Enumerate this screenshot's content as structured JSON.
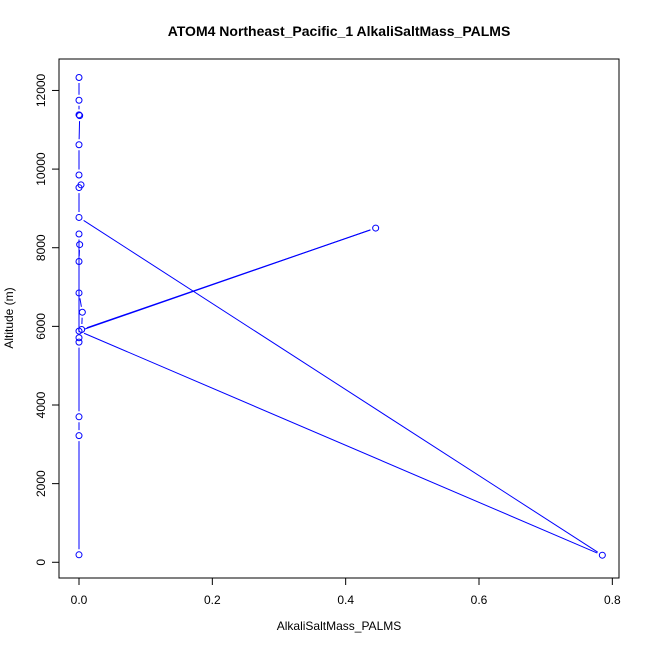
{
  "chart_data": {
    "type": "scatter",
    "title": "ATOM4 Northeast_Pacific_1 AlkaliSaltMass_PALMS",
    "xlabel": "AlkaliSaltMass_PALMS",
    "ylabel": "Altitude (m)",
    "xlim": [
      -0.03,
      0.81
    ],
    "ylim": [
      -400,
      12800
    ],
    "xticks": [
      0.0,
      0.2,
      0.4,
      0.6,
      0.8
    ],
    "xtick_labels": [
      "0.0",
      "0.2",
      "0.4",
      "0.6",
      "0.8"
    ],
    "yticks": [
      0,
      2000,
      4000,
      6000,
      8000,
      10000,
      12000
    ],
    "ytick_labels": [
      "0",
      "2000",
      "4000",
      "6000",
      "8000",
      "10000",
      "12000"
    ],
    "series": [
      {
        "color": "#0000ff",
        "marker": "open-circle",
        "line": true,
        "points": [
          {
            "x": 0.0,
            "y": 12330
          },
          {
            "x": 0.0,
            "y": 11750
          },
          {
            "x": 0.0,
            "y": 11380
          },
          {
            "x": 0.001,
            "y": 11360
          },
          {
            "x": 0.0,
            "y": 10620
          },
          {
            "x": 0.0,
            "y": 9850
          },
          {
            "x": 0.003,
            "y": 9600
          },
          {
            "x": 0.0,
            "y": 9530
          },
          {
            "x": 0.0,
            "y": 8770
          },
          {
            "x": 0.785,
            "y": 180
          },
          {
            "x": 0.0,
            "y": 5880
          },
          {
            "x": 0.445,
            "y": 8500
          },
          {
            "x": 0.004,
            "y": 5920
          },
          {
            "x": 0.005,
            "y": 6360
          },
          {
            "x": 0.0,
            "y": 6850
          },
          {
            "x": 0.0,
            "y": 7650
          },
          {
            "x": 0.001,
            "y": 8080
          },
          {
            "x": 0.0,
            "y": 8350
          },
          {
            "x": 0.0,
            "y": 5710
          },
          {
            "x": 0.0,
            "y": 5600
          },
          {
            "x": 0.0,
            "y": 3700
          },
          {
            "x": 0.0,
            "y": 3220
          },
          {
            "x": 0.0,
            "y": 190
          }
        ]
      }
    ]
  }
}
